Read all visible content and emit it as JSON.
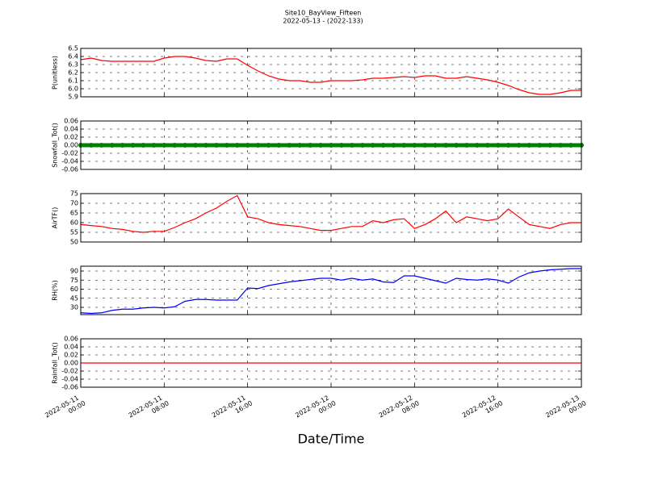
{
  "title": "Site10_BayView_Fifteen",
  "subtitle": "2022-05-13 - (2022-133)",
  "x_axis": {
    "label": "Date/Time",
    "xlim": [
      "2022-05-11 00:00",
      "2022-05-13 00:00"
    ],
    "xticks": [
      "2022-05-11 00:00",
      "2022-05-11 08:00",
      "2022-05-11 16:00",
      "2022-05-12 00:00",
      "2022-05-12 08:00",
      "2022-05-12 16:00",
      "2022-05-13 00:00"
    ],
    "x": [
      "2022-05-11 00:00",
      "2022-05-11 01:00",
      "2022-05-11 02:00",
      "2022-05-11 03:00",
      "2022-05-11 04:00",
      "2022-05-11 05:00",
      "2022-05-11 06:00",
      "2022-05-11 07:00",
      "2022-05-11 08:00",
      "2022-05-11 09:00",
      "2022-05-11 10:00",
      "2022-05-11 11:00",
      "2022-05-11 12:00",
      "2022-05-11 13:00",
      "2022-05-11 14:00",
      "2022-05-11 15:00",
      "2022-05-11 16:00",
      "2022-05-11 17:00",
      "2022-05-11 18:00",
      "2022-05-11 19:00",
      "2022-05-11 20:00",
      "2022-05-11 21:00",
      "2022-05-11 22:00",
      "2022-05-11 23:00",
      "2022-05-12 00:00",
      "2022-05-12 01:00",
      "2022-05-12 02:00",
      "2022-05-12 03:00",
      "2022-05-12 04:00",
      "2022-05-12 05:00",
      "2022-05-12 06:00",
      "2022-05-12 07:00",
      "2022-05-12 08:00",
      "2022-05-12 09:00",
      "2022-05-12 10:00",
      "2022-05-12 11:00",
      "2022-05-12 12:00",
      "2022-05-12 13:00",
      "2022-05-12 14:00",
      "2022-05-12 15:00",
      "2022-05-12 16:00",
      "2022-05-12 17:00",
      "2022-05-12 18:00",
      "2022-05-12 19:00",
      "2022-05-12 20:00",
      "2022-05-12 21:00",
      "2022-05-12 22:00",
      "2022-05-12 23:00",
      "2022-05-13 00:00"
    ]
  },
  "chart_data": [
    {
      "type": "line",
      "y_label": "P(unitless)",
      "ylim": [
        5.9,
        6.5
      ],
      "yticks": [
        5.9,
        {
          "value": 6.0,
          "label": "6.0"
        },
        6.1,
        6.2,
        6.3,
        6.4,
        6.5
      ],
      "grid": true,
      "series": [
        {
          "color": "#ff0000",
          "values": [
            6.36,
            6.38,
            6.35,
            6.34,
            6.34,
            6.34,
            6.34,
            6.34,
            6.38,
            6.4,
            6.4,
            6.38,
            6.35,
            6.34,
            6.37,
            6.37,
            6.29,
            6.22,
            6.16,
            6.12,
            6.1,
            6.1,
            6.08,
            6.08,
            6.1,
            6.1,
            6.1,
            6.11,
            6.13,
            6.13,
            6.14,
            6.15,
            6.14,
            6.16,
            6.16,
            6.13,
            6.13,
            6.15,
            6.13,
            6.11,
            6.08,
            6.04,
            5.99,
            5.95,
            5.93,
            5.93,
            5.95,
            5.98,
            5.98
          ]
        }
      ]
    },
    {
      "type": "line",
      "y_label": "Snowfall_Tot()",
      "ylim": [
        -0.06,
        0.06
      ],
      "yticks": [
        -0.06,
        -0.04,
        -0.02,
        {
          "value": 0,
          "label": "0.00"
        },
        0.02,
        0.04,
        0.06
      ],
      "grid": true,
      "series": [
        {
          "color": "#008000",
          "marker": "o",
          "values": [
            0,
            0,
            0,
            0,
            0,
            0,
            0,
            0,
            0,
            0,
            0,
            0,
            0,
            0,
            0,
            0,
            0,
            0,
            0,
            0,
            0,
            0,
            0,
            0,
            0,
            0,
            0,
            0,
            0,
            0,
            0,
            0,
            0,
            0,
            0,
            0,
            0,
            0,
            0,
            0,
            0,
            0,
            0,
            0,
            0,
            0,
            0,
            0,
            0
          ]
        }
      ]
    },
    {
      "type": "line",
      "y_label": "AirTF()",
      "ylim": [
        50,
        75
      ],
      "yticks": [
        50,
        55,
        60,
        65,
        70,
        75
      ],
      "grid": true,
      "series": [
        {
          "color": "#ff0000",
          "values": [
            59,
            58.5,
            58,
            57,
            56.5,
            55.5,
            55,
            55.5,
            55.5,
            57.5,
            60,
            62,
            65,
            67.5,
            71,
            74,
            63,
            62,
            60,
            59,
            58.5,
            58,
            57,
            56,
            56,
            57,
            58,
            58,
            61,
            60,
            61.5,
            62,
            57,
            59,
            62,
            66,
            60,
            63,
            62,
            61,
            62,
            67,
            63,
            59,
            58,
            57,
            59,
            60,
            60
          ]
        }
      ]
    },
    {
      "type": "line",
      "y_label": "RH(%)",
      "ylim": [
        18,
        98
      ],
      "yticks": [
        30,
        45,
        60,
        75,
        90
      ],
      "grid": true,
      "series": [
        {
          "color": "#0000ff",
          "values": [
            21,
            20,
            21,
            25,
            27,
            27,
            29,
            30,
            29,
            31,
            40,
            43,
            43,
            42,
            42,
            42,
            62,
            61,
            66,
            69,
            72,
            74,
            76,
            78,
            78,
            75,
            78,
            75,
            77,
            72,
            71,
            82,
            82,
            78,
            74,
            70,
            78,
            76,
            75,
            77,
            75,
            70,
            80,
            87,
            90,
            92,
            93,
            94,
            94
          ]
        }
      ]
    },
    {
      "type": "line",
      "y_label": "Rainfall_Tot()",
      "ylim": [
        -0.06,
        0.06
      ],
      "yticks": [
        -0.06,
        -0.04,
        -0.02,
        {
          "value": 0,
          "label": "0.00"
        },
        0.02,
        0.04,
        0.06
      ],
      "grid": true,
      "series": [
        {
          "color": "#ff0000",
          "values": [
            0,
            0,
            0,
            0,
            0,
            0,
            0,
            0,
            0,
            0,
            0,
            0,
            0,
            0,
            0,
            0,
            0,
            0,
            0,
            0,
            0,
            0,
            0,
            0,
            0,
            0,
            0,
            0,
            0,
            0,
            0,
            0,
            0,
            0,
            0,
            0,
            0,
            0,
            0,
            0,
            0,
            0,
            0,
            0,
            0,
            0,
            0,
            0,
            0
          ]
        }
      ]
    }
  ]
}
